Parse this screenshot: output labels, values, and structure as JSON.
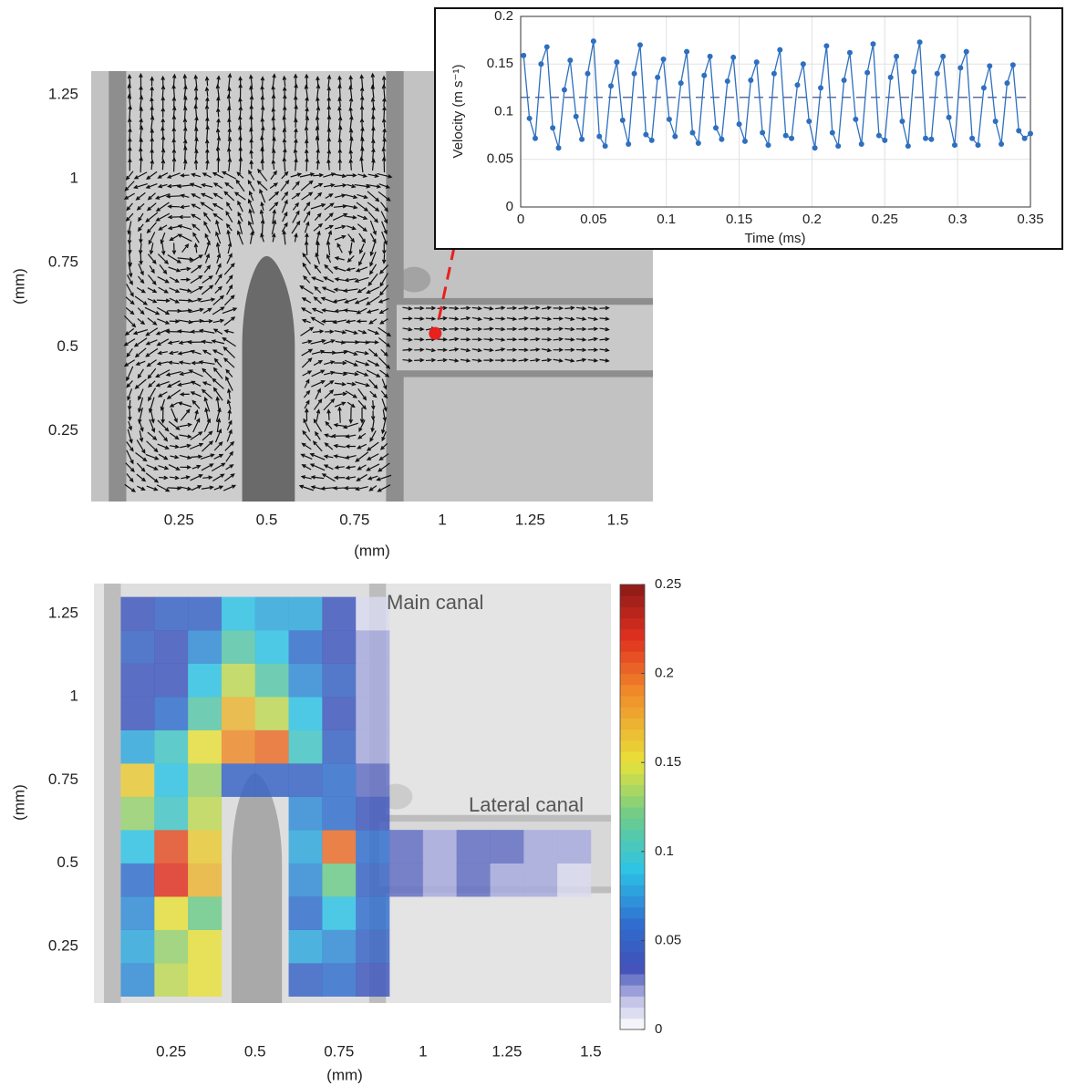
{
  "chart_data": [
    {
      "type": "quiver",
      "xlabel": "(mm)",
      "ylabel": "(mm)",
      "xlim": [
        0,
        1.6
      ],
      "ylim": [
        0.04,
        1.32
      ],
      "xticks": [
        0.25,
        0.5,
        0.75,
        1,
        1.25,
        1.5
      ],
      "yticks": [
        0.25,
        0.5,
        0.75,
        1,
        1.25
      ],
      "probe": {
        "x": 0.98,
        "y": 0.54,
        "color": "#e8201e"
      }
    },
    {
      "type": "line",
      "xlabel": "Time (ms)",
      "ylabel": "Velocity (m s⁻¹)",
      "xlim": [
        0,
        0.35
      ],
      "ylim": [
        0,
        0.2
      ],
      "xticks": [
        0,
        0.05,
        0.1,
        0.15,
        0.2,
        0.25,
        0.3,
        0.35
      ],
      "yticks": [
        0,
        0.05,
        0.1,
        0.15,
        0.2
      ],
      "grid": true,
      "hline": 0.115,
      "series": [
        {
          "color": "#2e6fbf",
          "x": [
            0.002,
            0.006,
            0.01,
            0.014,
            0.018,
            0.022,
            0.026,
            0.03,
            0.034,
            0.038,
            0.042,
            0.046,
            0.05,
            0.054,
            0.058,
            0.062,
            0.066,
            0.07,
            0.074,
            0.078,
            0.082,
            0.086,
            0.09,
            0.094,
            0.098,
            0.102,
            0.106,
            0.11,
            0.114,
            0.118,
            0.122,
            0.126,
            0.13,
            0.134,
            0.138,
            0.142,
            0.146,
            0.15,
            0.154,
            0.158,
            0.162,
            0.166,
            0.17,
            0.174,
            0.178,
            0.182,
            0.186,
            0.19,
            0.194,
            0.198,
            0.202,
            0.206,
            0.21,
            0.214,
            0.218,
            0.222,
            0.226,
            0.23,
            0.234,
            0.238,
            0.242,
            0.246,
            0.25,
            0.254,
            0.258,
            0.262,
            0.266,
            0.27,
            0.274,
            0.278,
            0.282,
            0.286,
            0.29,
            0.294,
            0.298,
            0.302,
            0.306,
            0.31,
            0.314,
            0.318,
            0.322,
            0.326,
            0.33,
            0.334,
            0.338,
            0.342,
            0.346,
            0.35
          ],
          "values": [
            0.159,
            0.093,
            0.072,
            0.15,
            0.168,
            0.083,
            0.062,
            0.123,
            0.154,
            0.095,
            0.071,
            0.14,
            0.174,
            0.074,
            0.064,
            0.127,
            0.152,
            0.091,
            0.066,
            0.14,
            0.17,
            0.076,
            0.07,
            0.136,
            0.155,
            0.092,
            0.074,
            0.13,
            0.163,
            0.078,
            0.067,
            0.138,
            0.158,
            0.083,
            0.071,
            0.132,
            0.157,
            0.087,
            0.069,
            0.133,
            0.152,
            0.078,
            0.065,
            0.14,
            0.165,
            0.075,
            0.072,
            0.128,
            0.15,
            0.09,
            0.062,
            0.125,
            0.169,
            0.078,
            0.064,
            0.133,
            0.162,
            0.092,
            0.066,
            0.141,
            0.171,
            0.075,
            0.07,
            0.136,
            0.158,
            0.09,
            0.064,
            0.142,
            0.173,
            0.072,
            0.071,
            0.14,
            0.158,
            0.094,
            0.065,
            0.146,
            0.163,
            0.072,
            0.065,
            0.125,
            0.148,
            0.09,
            0.066,
            0.13,
            0.149,
            0.08,
            0.072,
            0.077
          ]
        }
      ]
    },
    {
      "type": "heatmap",
      "xlabel": "(mm)",
      "ylabel": "(mm)",
      "xlim": [
        0.02,
        1.56
      ],
      "ylim": [
        0.08,
        1.34
      ],
      "xticks": [
        0.25,
        0.5,
        0.75,
        1,
        1.25,
        1.5
      ],
      "yticks": [
        0.25,
        0.5,
        0.75,
        1,
        1.25
      ],
      "xbins": [
        0.1,
        0.2,
        0.3,
        0.4,
        0.5,
        0.6,
        0.7,
        0.8,
        0.9,
        1.0,
        1.1,
        1.2,
        1.3,
        1.4,
        1.5
      ],
      "ybins": [
        0.1,
        0.2,
        0.3,
        0.4,
        0.5,
        0.6,
        0.7,
        0.8,
        0.9,
        1.0,
        1.1,
        1.2,
        1.3
      ],
      "z": [
        [
          0.07,
          0.14,
          0.15,
          null,
          null,
          0.05,
          0.06,
          0.04,
          null,
          null,
          null,
          null,
          null,
          null
        ],
        [
          0.08,
          0.13,
          0.15,
          null,
          null,
          0.08,
          0.07,
          0.05,
          null,
          null,
          null,
          null,
          null,
          null
        ],
        [
          0.07,
          0.15,
          0.12,
          null,
          null,
          0.06,
          0.09,
          0.06,
          null,
          null,
          null,
          null,
          null,
          null
        ],
        [
          0.06,
          0.22,
          0.17,
          null,
          null,
          0.07,
          0.12,
          0.05,
          0.03,
          0.02,
          0.03,
          0.02,
          0.02,
          0.01
        ],
        [
          0.09,
          0.21,
          0.16,
          null,
          null,
          0.08,
          0.2,
          0.06,
          0.03,
          0.02,
          0.03,
          0.03,
          0.02,
          0.02
        ],
        [
          0.13,
          0.1,
          0.14,
          null,
          null,
          0.07,
          0.06,
          0.04,
          null,
          null,
          null,
          null,
          null,
          null
        ],
        [
          0.16,
          0.09,
          0.13,
          0.05,
          0.05,
          0.05,
          0.06,
          0.03,
          null,
          null,
          null,
          null,
          null,
          null
        ],
        [
          0.08,
          0.1,
          0.15,
          0.19,
          0.2,
          0.1,
          0.05,
          0.02,
          null,
          null,
          null,
          null,
          null,
          null
        ],
        [
          0.04,
          0.06,
          0.11,
          0.17,
          0.14,
          0.09,
          0.04,
          0.02,
          null,
          null,
          null,
          null,
          null,
          null
        ],
        [
          0.04,
          0.04,
          0.09,
          0.14,
          0.11,
          0.07,
          0.05,
          0.02,
          null,
          null,
          null,
          null,
          null,
          null
        ],
        [
          0.05,
          0.04,
          0.07,
          0.11,
          0.09,
          0.06,
          0.04,
          0.02,
          null,
          null,
          null,
          null,
          null,
          null
        ],
        [
          0.04,
          0.05,
          0.05,
          0.09,
          0.08,
          0.08,
          0.04,
          0.01,
          null,
          null,
          null,
          null,
          null,
          null
        ]
      ],
      "zlim": [
        0,
        0.25
      ],
      "colorbar_ticks": [
        0,
        0.05,
        0.1,
        0.15,
        0.2,
        0.25
      ],
      "annotations": [
        "Main canal",
        "Lateral canal"
      ]
    }
  ]
}
